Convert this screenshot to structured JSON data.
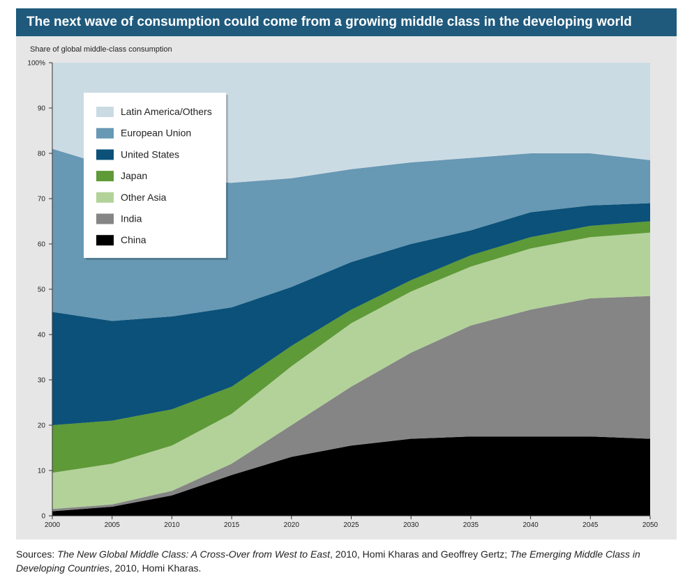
{
  "title": "The next wave of consumption could come from a growing middle class in the developing world",
  "source": {
    "prefix": "Sources: ",
    "ref1_title": "The New Global Middle Class: A Cross-Over from West to East",
    "ref1_rest": ", 2010, Homi Kharas and Geoffrey Gertz; ",
    "ref2_title": "The Emerging Middle Class in Developing Countries",
    "ref2_rest": ", 2010, Homi Kharas."
  },
  "chart_data": {
    "type": "area",
    "stacked": true,
    "ylabel": "Share of global middle-class consumption",
    "ylim": [
      0,
      100
    ],
    "y_ticks": [
      "0",
      "10",
      "20",
      "30",
      "40",
      "50",
      "60",
      "70",
      "80",
      "90",
      "100%"
    ],
    "y_tick_values": [
      0,
      10,
      20,
      30,
      40,
      50,
      60,
      70,
      80,
      90,
      100
    ],
    "xlim": [
      2000,
      2050
    ],
    "x_ticks": [
      "2000",
      "2005",
      "2010",
      "2015",
      "2020",
      "2025",
      "2030",
      "2035",
      "2040",
      "2045",
      "2050"
    ],
    "x_tick_values": [
      2000,
      2005,
      2010,
      2015,
      2020,
      2025,
      2030,
      2035,
      2040,
      2045,
      2050
    ],
    "x": [
      2000,
      2005,
      2010,
      2015,
      2020,
      2025,
      2030,
      2035,
      2040,
      2045,
      2050
    ],
    "legend_position": "top-left",
    "series": [
      {
        "name": "China",
        "color": "#000000",
        "values": [
          1,
          2,
          4.5,
          9,
          13,
          15.5,
          17,
          17.5,
          17.5,
          17.5,
          17
        ]
      },
      {
        "name": "India",
        "color": "#858585",
        "values": [
          0.5,
          0.5,
          1,
          2.5,
          7,
          13,
          19,
          24.5,
          28,
          30.5,
          31.5
        ]
      },
      {
        "name": "Other Asia",
        "color": "#b3d29a",
        "values": [
          8,
          9,
          10,
          11,
          13,
          14,
          13.5,
          13,
          13.5,
          13.5,
          14
        ]
      },
      {
        "name": "Japan",
        "color": "#5e9a37",
        "values": [
          10.5,
          9.5,
          8,
          6,
          4.5,
          3,
          2.5,
          2.5,
          2.5,
          2.5,
          2.5
        ]
      },
      {
        "name": "United States",
        "color": "#0b5179",
        "values": [
          25,
          22,
          20.5,
          17.5,
          13,
          10.5,
          8,
          5.5,
          5.5,
          4.5,
          4
        ]
      },
      {
        "name": "European Union",
        "color": "#6798b4",
        "values": [
          36,
          34,
          30,
          27.5,
          24,
          20.5,
          18,
          16,
          13,
          11.5,
          9.5
        ]
      },
      {
        "name": "Latin America/Others",
        "color": "#cbdbe4",
        "values": [
          19,
          23,
          26,
          26.5,
          25.5,
          23.5,
          22,
          21,
          20,
          20,
          21.5
        ]
      }
    ]
  }
}
